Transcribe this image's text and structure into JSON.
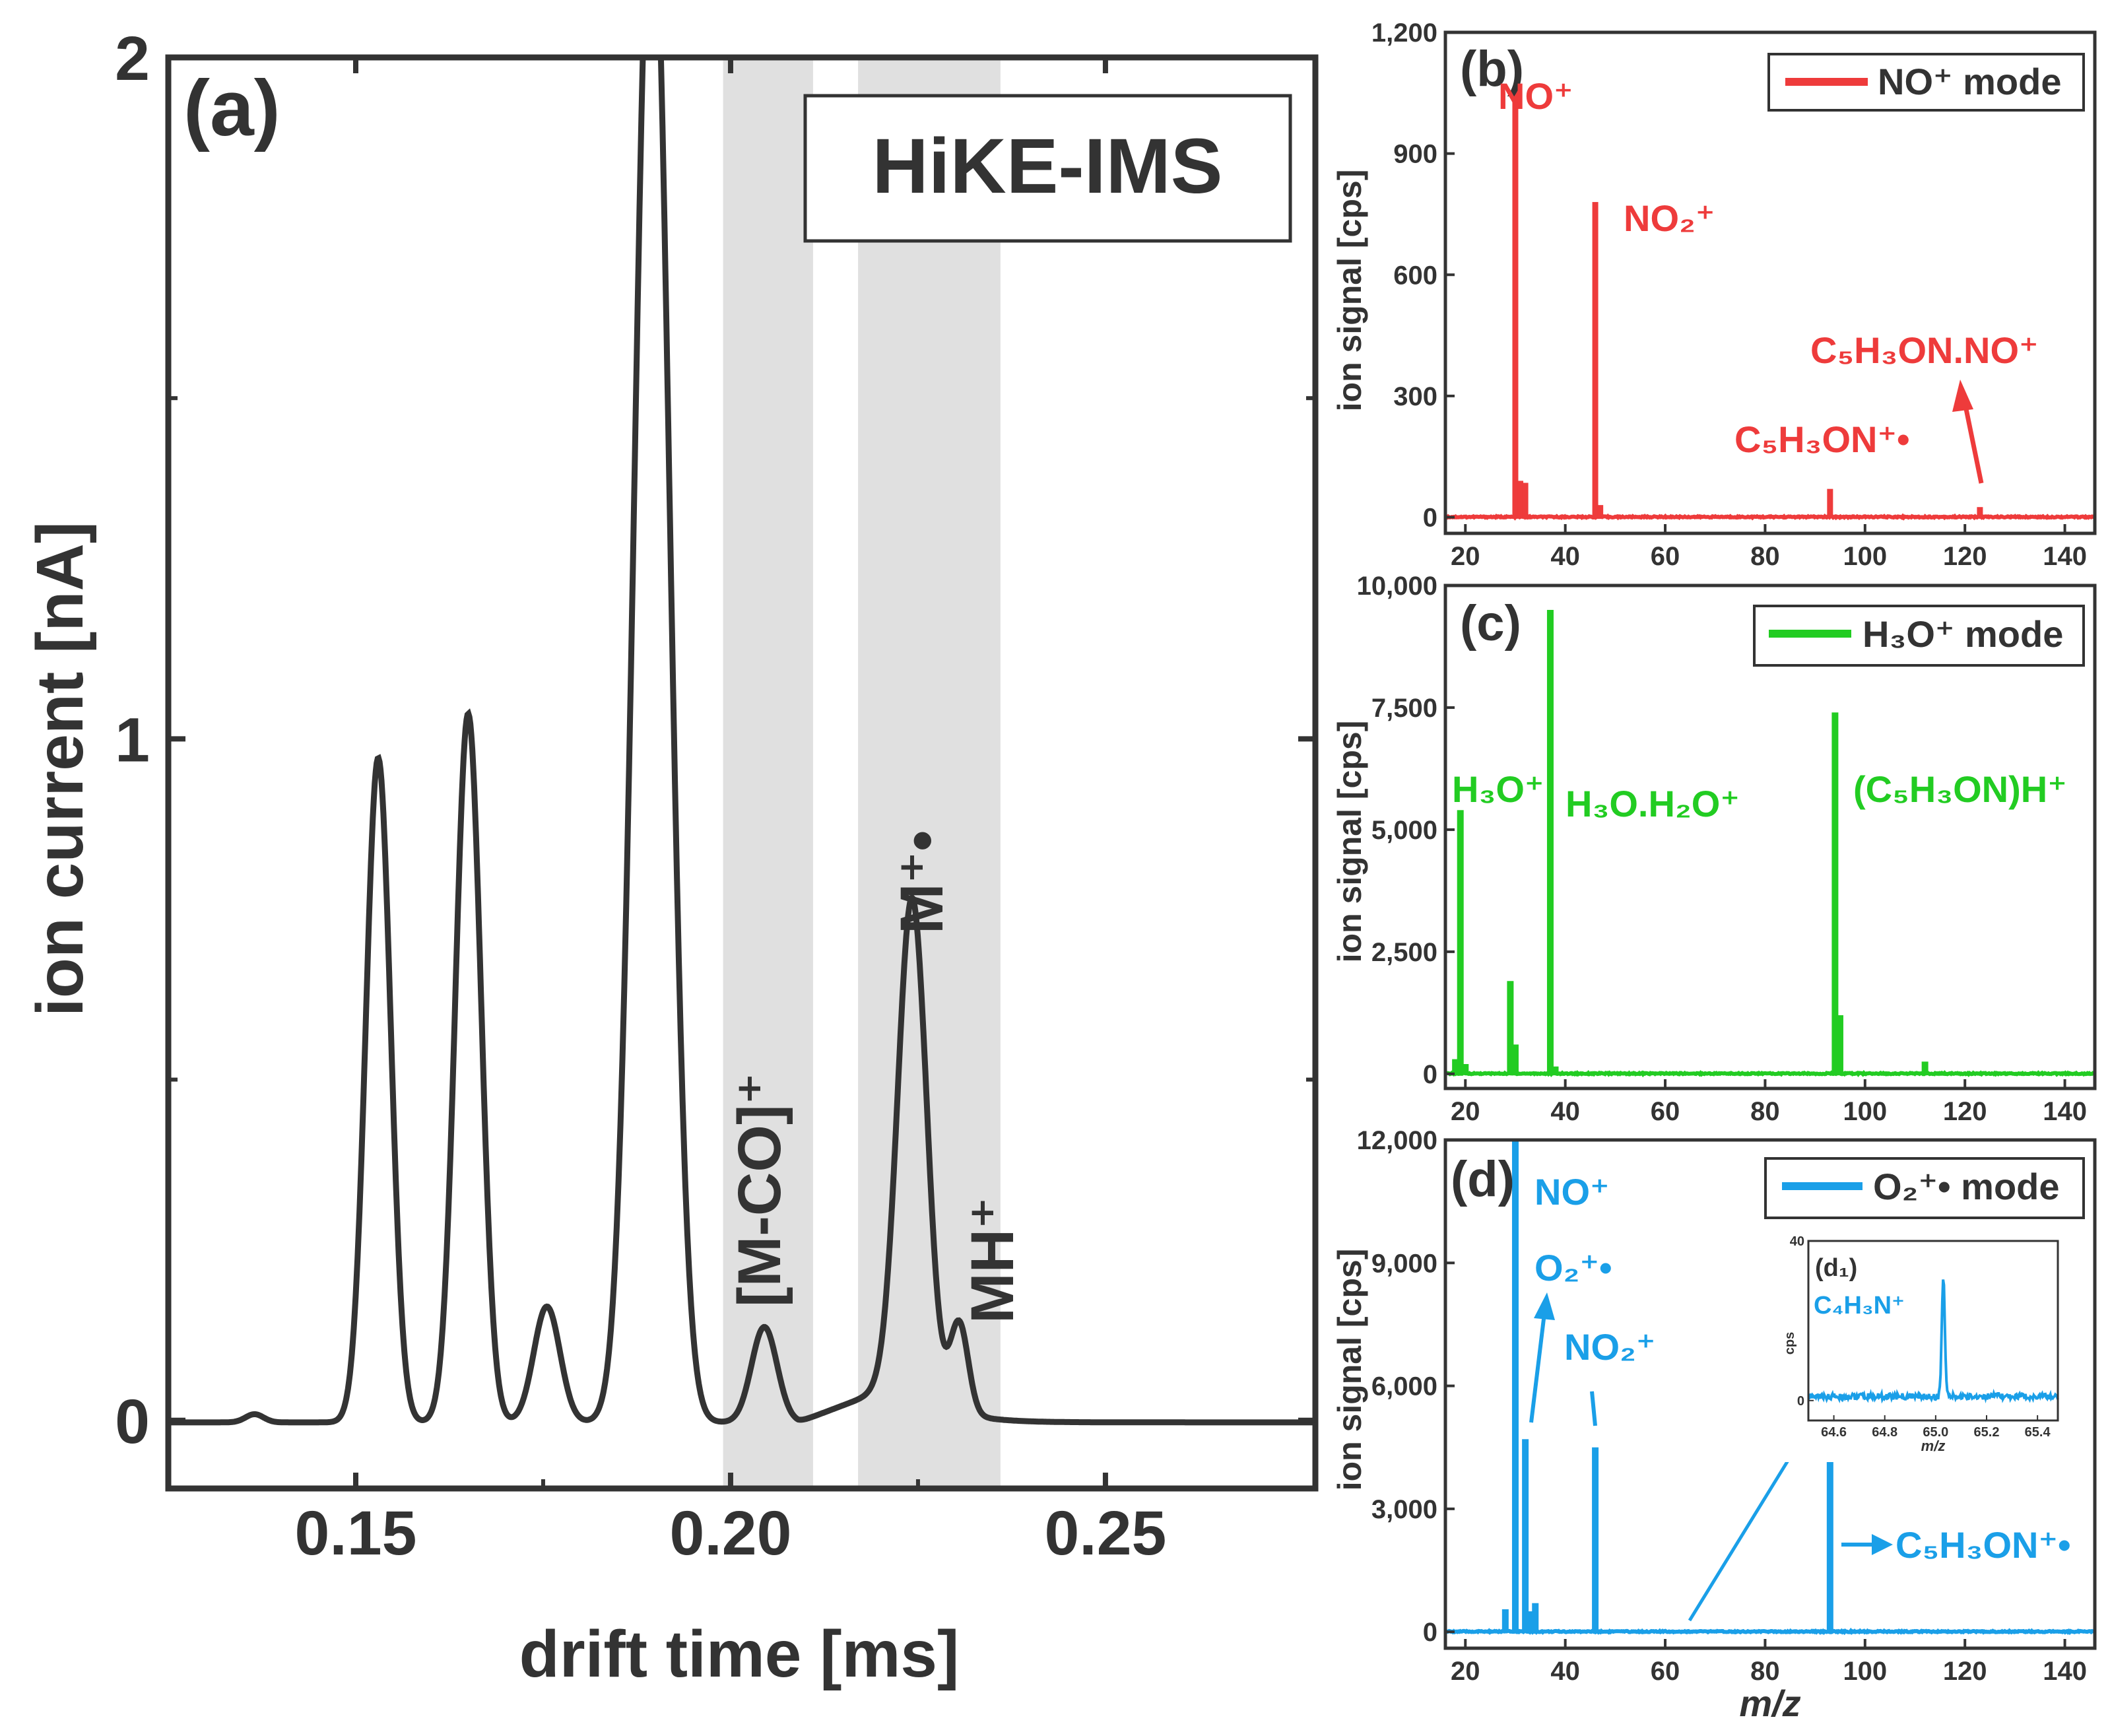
{
  "chart_data": [
    {
      "panel": "a",
      "type": "line",
      "panel_label": "(a)",
      "title": "HiKE-IMS",
      "xlabel": "drift time [ms]",
      "ylabel": "ion current [nA]",
      "xlim": [
        0.125,
        0.278
      ],
      "ylim": [
        -0.1,
        2.0
      ],
      "xticks": [
        0.15,
        0.2,
        0.25
      ],
      "xtick_labels": [
        "0.15",
        "0.20",
        "0.25"
      ],
      "yticks": [
        0,
        1,
        2
      ],
      "ytick_labels": [
        "0",
        "1",
        "2"
      ],
      "color": "#333333",
      "shaded_regions": [
        [
          0.199,
          0.211
        ],
        [
          0.217,
          0.236
        ]
      ],
      "annotations": [
        {
          "text": "[M-CO]⁺",
          "x": 0.205,
          "y": 0.12
        },
        {
          "text": "M⁺•",
          "x": 0.224,
          "y": 0.7
        },
        {
          "text": "MH⁺",
          "x": 0.231,
          "y": 0.14
        }
      ],
      "series": [
        {
          "peaks": [
            {
              "center": 0.1365,
              "height": 0.012,
              "width": 0.0012
            },
            {
              "center": 0.153,
              "height": 0.975,
              "width": 0.00165
            },
            {
              "center": 0.165,
              "height": 1.04,
              "width": 0.0017
            },
            {
              "center": 0.1755,
              "height": 0.17,
              "width": 0.00175
            },
            {
              "center": 0.1895,
              "height": 2.3,
              "width": 0.0023
            },
            {
              "center": 0.2045,
              "height": 0.14,
              "width": 0.0017
            },
            {
              "center": 0.2242,
              "height": 0.72,
              "width": 0.0019
            },
            {
              "center": 0.2305,
              "height": 0.13,
              "width": 0.0012
            }
          ],
          "points": [
            [
              0.218,
              0.06
            ],
            [
              0.2235,
              0.66
            ],
            [
              0.2255,
              0.62
            ],
            [
              0.229,
              0.1
            ]
          ]
        }
      ]
    },
    {
      "panel": "b",
      "type": "line",
      "panel_label": "(b)",
      "ylabel": "ion signal [cps]",
      "xlim": [
        16,
        146
      ],
      "ylim": [
        -40,
        1200
      ],
      "xticks": [
        20,
        40,
        60,
        80,
        100,
        120,
        140
      ],
      "yticks": [
        0,
        300,
        600,
        900,
        1200
      ],
      "ytick_labels": [
        "0",
        "300",
        "600",
        "900",
        "1,200"
      ],
      "legend": "NO⁺ mode",
      "legend_position": "top-right",
      "color": "#ee3b3b",
      "series": [
        {
          "name": "NO⁺ mode",
          "peaks": [
            {
              "mz": 30,
              "value": 1060
            },
            {
              "mz": 31,
              "value": 90
            },
            {
              "mz": 32,
              "value": 85
            },
            {
              "mz": 46,
              "value": 780
            },
            {
              "mz": 47,
              "value": 30
            },
            {
              "mz": 93,
              "value": 70
            },
            {
              "mz": 123,
              "value": 25
            }
          ]
        }
      ],
      "annotations": [
        {
          "text": "NO⁺",
          "x": 30,
          "y": 1060
        },
        {
          "text": "NO₂⁺",
          "x": 46,
          "y": 780
        },
        {
          "text": "C₅H₃ON⁺•",
          "x": 93,
          "y": 70
        },
        {
          "text": "C₅H₃ON.NO⁺",
          "x": 123,
          "y": 25
        }
      ]
    },
    {
      "panel": "c",
      "type": "line",
      "panel_label": "(c)",
      "ylabel": "ion signal [cps]",
      "xlim": [
        16,
        146
      ],
      "ylim": [
        -300,
        10000
      ],
      "xticks": [
        20,
        40,
        60,
        80,
        100,
        120,
        140
      ],
      "yticks": [
        0,
        2500,
        5000,
        7500,
        10000
      ],
      "ytick_labels": [
        "0",
        "2,500",
        "5,000",
        "7,500",
        "10,000"
      ],
      "legend": "H₃O⁺ mode",
      "legend_position": "top-right",
      "color": "#22cc22",
      "series": [
        {
          "name": "H₃O⁺ mode",
          "peaks": [
            {
              "mz": 18,
              "value": 300
            },
            {
              "mz": 19,
              "value": 5400
            },
            {
              "mz": 20,
              "value": 200
            },
            {
              "mz": 29,
              "value": 1900
            },
            {
              "mz": 30,
              "value": 600
            },
            {
              "mz": 37,
              "value": 9500
            },
            {
              "mz": 38,
              "value": 150
            },
            {
              "mz": 94,
              "value": 7400
            },
            {
              "mz": 95,
              "value": 1200
            },
            {
              "mz": 112,
              "value": 250
            }
          ]
        }
      ],
      "annotations": [
        {
          "text": "H₃O⁺",
          "x": 19,
          "y": 5400
        },
        {
          "text": "H₃O.H₂O⁺",
          "x": 37,
          "y": 9500
        },
        {
          "text": "(C₅H₃ON)H⁺",
          "x": 94,
          "y": 7400
        }
      ]
    },
    {
      "panel": "d",
      "type": "line",
      "panel_label": "(d)",
      "xlabel": "m/z",
      "ylabel": "ion signal [cps]",
      "xlim": [
        16,
        146
      ],
      "ylim": [
        -400,
        12000
      ],
      "xticks": [
        20,
        40,
        60,
        80,
        100,
        120,
        140
      ],
      "yticks": [
        0,
        3000,
        6000,
        9000,
        12000
      ],
      "ytick_labels": [
        "0",
        "3,000",
        "6,000",
        "9,000",
        "12,000"
      ],
      "legend": "O₂⁺• mode",
      "legend_position": "top-right",
      "color": "#1a9fe8",
      "series": [
        {
          "name": "O₂⁺• mode",
          "peaks": [
            {
              "mz": 28,
              "value": 550
            },
            {
              "mz": 30,
              "value": 12000
            },
            {
              "mz": 32,
              "value": 4700
            },
            {
              "mz": 33,
              "value": 500
            },
            {
              "mz": 34,
              "value": 700
            },
            {
              "mz": 46,
              "value": 4500
            },
            {
              "mz": 93,
              "value": 4200
            }
          ]
        }
      ],
      "annotations": [
        {
          "text": "NO⁺",
          "x": 30,
          "y": 12000
        },
        {
          "text": "O₂⁺•",
          "x": 32,
          "y": 4700
        },
        {
          "text": "NO₂⁺",
          "x": 46,
          "y": 4500
        },
        {
          "text": "C₅H₃ON⁺•",
          "x": 93,
          "y": 4200
        }
      ],
      "inset": {
        "label": "(d₁)",
        "annotation": "C₄H₃N⁺",
        "ylabel": "cps",
        "xlabel": "m/z",
        "xlim": [
          64.5,
          65.48
        ],
        "ylim": [
          -5,
          40
        ],
        "xticks": [
          64.6,
          64.8,
          65.0,
          65.2,
          65.4
        ],
        "xtick_labels": [
          "64.6",
          "64.8",
          "65.0",
          "65.2",
          "65.4"
        ],
        "yticks": [
          0,
          40
        ],
        "ytick_labels": [
          "0",
          "40"
        ],
        "peak": {
          "mz": 65.03,
          "value": 30
        }
      }
    }
  ]
}
